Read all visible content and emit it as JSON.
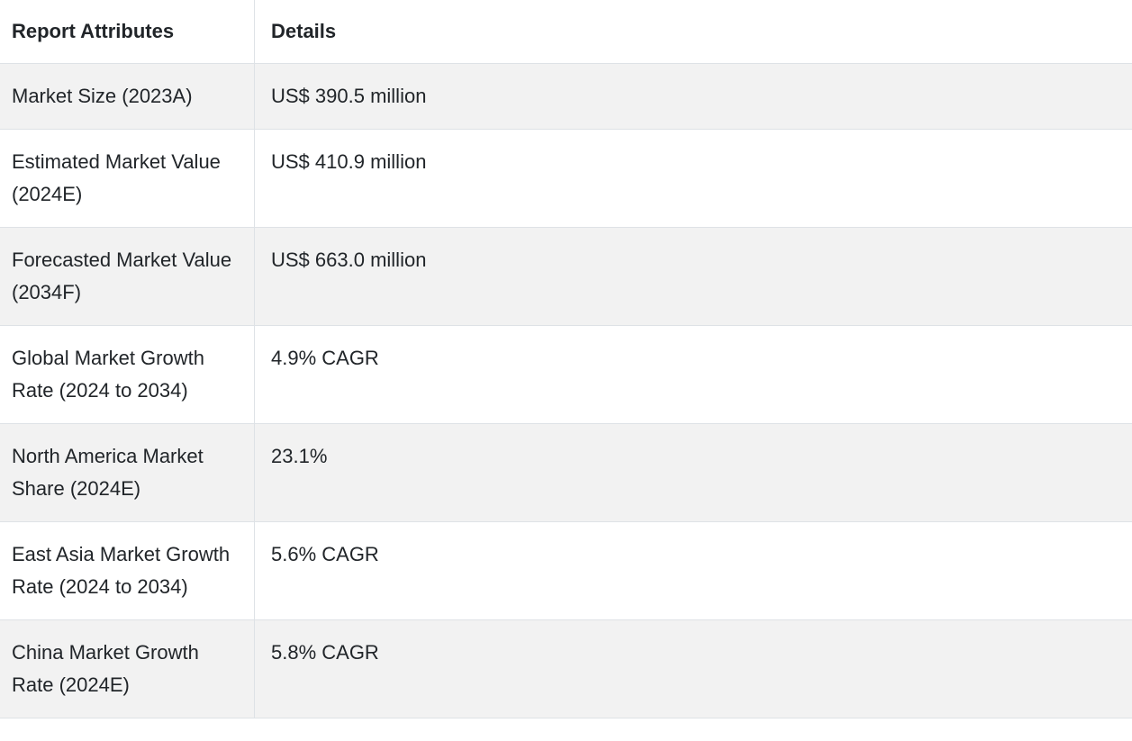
{
  "table": {
    "headers": [
      "Report Attributes",
      "Details"
    ],
    "rows": [
      [
        "Market Size (2023A)",
        "US$ 390.5 million"
      ],
      [
        "Estimated Market Value (2024E)",
        "US$ 410.9 million"
      ],
      [
        "Forecasted Market Value (2034F)",
        "US$ 663.0 million"
      ],
      [
        "Global Market Growth Rate (2024 to 2034)",
        "4.9% CAGR"
      ],
      [
        "North America Market Share (2024E)",
        "23.1%"
      ],
      [
        "East Asia Market Growth Rate (2024 to 2034)",
        "5.6% CAGR"
      ],
      [
        "China Market Growth Rate (2024E)",
        "5.8% CAGR"
      ]
    ]
  }
}
